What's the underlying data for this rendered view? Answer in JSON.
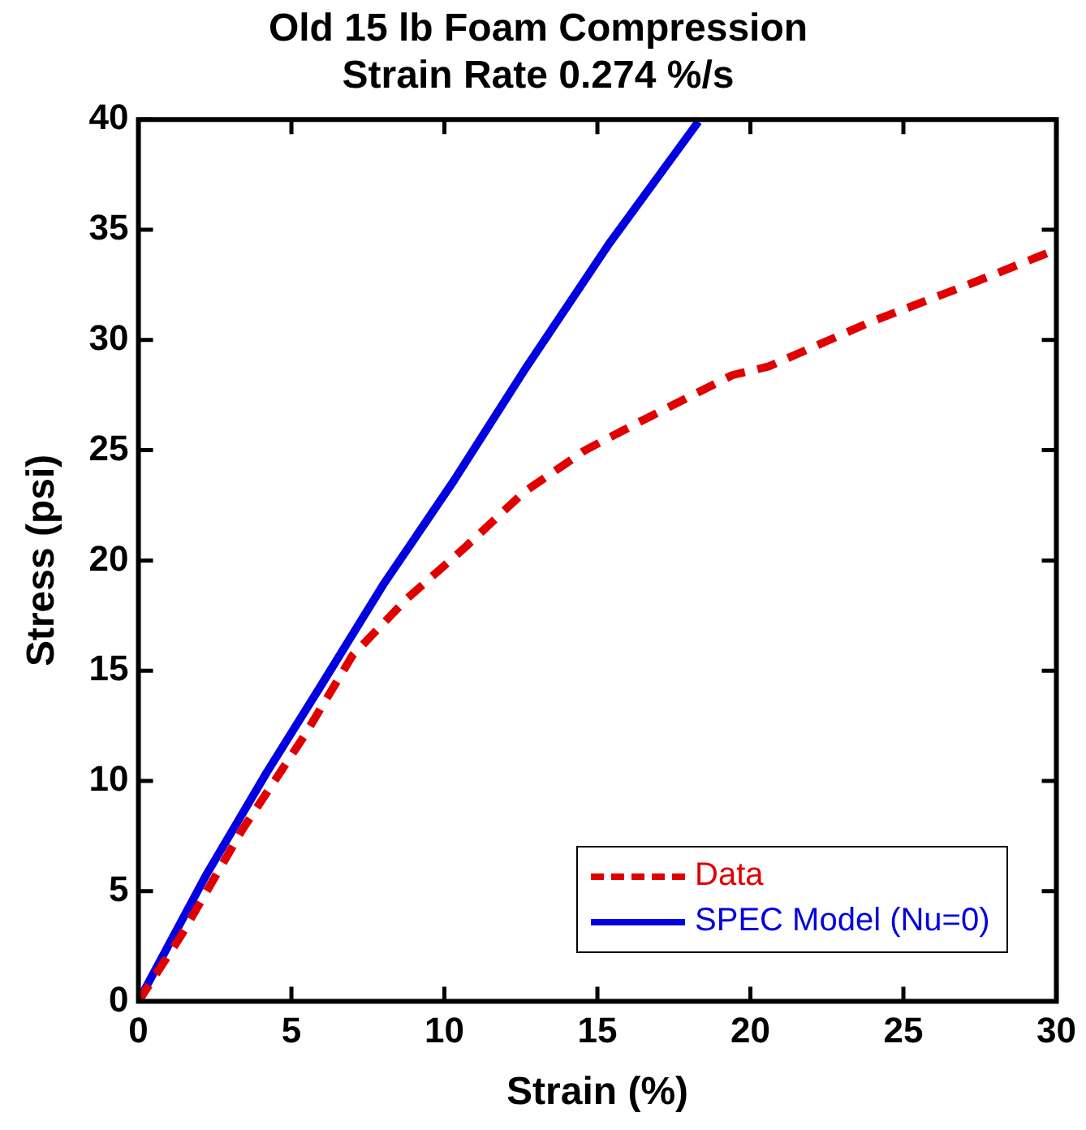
{
  "chart_data": {
    "type": "line",
    "title": "Old 15 lb Foam Compression",
    "subtitle": "Strain Rate 0.274 %/s",
    "xlabel": "Strain (%)",
    "ylabel": "Stress (psi)",
    "xlim": [
      0,
      30
    ],
    "xticks": [
      0,
      5,
      10,
      15,
      20,
      25,
      30
    ],
    "ylim": [
      0,
      40
    ],
    "yticks": [
      0,
      5,
      10,
      15,
      20,
      25,
      30,
      35,
      40
    ],
    "grid": false,
    "legend": "bottom right",
    "marker": "none",
    "series": [
      {
        "name": "Data",
        "color": "#e00000",
        "line_style": "dashed",
        "x": [
          0,
          1.4,
          3.4,
          5.4,
          7,
          8.8,
          10.6,
          12.6,
          14.6,
          16.4,
          19.4,
          20.6,
          23.9,
          27.1,
          30
        ],
        "values": [
          0,
          3,
          7.8,
          12,
          15.7,
          18.3,
          20.5,
          23.1,
          25,
          26.3,
          28.4,
          28.8,
          30.8,
          32.5,
          34.1
        ]
      },
      {
        "name": "SPEC Model (Nu=0)",
        "color": "#0000e0",
        "line_style": "solid",
        "x": [
          0,
          2.2,
          4.2,
          6,
          8,
          10.3,
          12.6,
          15.4,
          18.3
        ],
        "values": [
          0,
          5.7,
          10.4,
          14.4,
          18.9,
          23.6,
          28.6,
          34.4,
          39.9
        ]
      }
    ]
  }
}
